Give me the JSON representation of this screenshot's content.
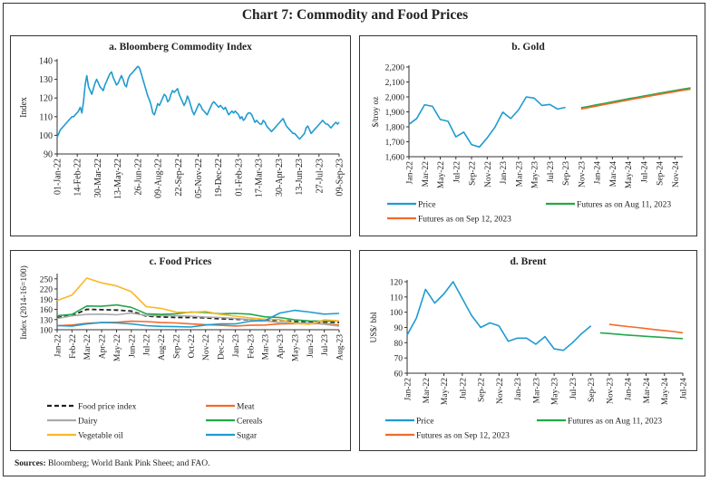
{
  "title": "Chart 7: Commodity and Food Prices",
  "sources_label": "Sources:",
  "sources_text": " Bloomberg; World Bank Pink Sheet; and FAO.",
  "colors": {
    "blue": "#1f9bd1",
    "green": "#23a84a",
    "orange": "#f26a2a",
    "yellow": "#fbb726",
    "grey": "#aaaaaa",
    "black": "#222222"
  },
  "chart_data": [
    {
      "id": "a",
      "type": "line",
      "title": "a. Bloomberg Commodity Index",
      "xlabel": "",
      "ylabel": "Index",
      "ylim": [
        90,
        140
      ],
      "yticks": [
        90,
        100,
        110,
        120,
        130,
        140
      ],
      "xtick_labels": [
        "01-Jan-22",
        "14-Feb-22",
        "30-Mar-22",
        "13-May-22",
        "26-Jun-22",
        "09-Aug-22",
        "22-Sep-22",
        "05-Nov-22",
        "19-Dec-22",
        "01-Feb-23",
        "17-Mar-23",
        "30-Apr-23",
        "13-Jun-23",
        "27-Jul-23",
        "09-Sep-23"
      ],
      "grid": false,
      "series": [
        {
          "name": "Bloomberg Commodity Index",
          "color": "#1f9bd1",
          "values": [
            99,
            101,
            103,
            104,
            105,
            106,
            107,
            108,
            109,
            110,
            110,
            111,
            112,
            113,
            115,
            112,
            118,
            127,
            132,
            126,
            124,
            122,
            125,
            128,
            130,
            128,
            126,
            125,
            124,
            127,
            129,
            131,
            133,
            134,
            131,
            129,
            127,
            128,
            130,
            132,
            130,
            127,
            126,
            130,
            132,
            133,
            134,
            135,
            136,
            137,
            136,
            133,
            130,
            127,
            124,
            121,
            119,
            116,
            112,
            111,
            114,
            117,
            116,
            118,
            120,
            122,
            121,
            118,
            119,
            122,
            124,
            123,
            124,
            125,
            122,
            120,
            118,
            116,
            118,
            121,
            119,
            116,
            113,
            111,
            113,
            115,
            117,
            116,
            114,
            113,
            112,
            111,
            113,
            115,
            117,
            118,
            117,
            116,
            115,
            116,
            115,
            114,
            115,
            113,
            111,
            112,
            113,
            112,
            113,
            112,
            111,
            109,
            110,
            108,
            109,
            111,
            112,
            112,
            111,
            109,
            107,
            108,
            107,
            106,
            106,
            108,
            107,
            105,
            104,
            103,
            102,
            103,
            104,
            105,
            106,
            107,
            108,
            109,
            107,
            105,
            104,
            103,
            102,
            101,
            101,
            100,
            99,
            98,
            99,
            100,
            101,
            104,
            105,
            103,
            101,
            102,
            103,
            104,
            105,
            106,
            107,
            108,
            107,
            106,
            106,
            105,
            104,
            105,
            106,
            107,
            106,
            107
          ]
        }
      ]
    },
    {
      "id": "b",
      "type": "line",
      "title": "b. Gold",
      "xlabel": "",
      "ylabel": "$/troy oz",
      "ylim": [
        1600,
        2200
      ],
      "yticks": [
        1600,
        1700,
        1800,
        1900,
        2000,
        2100,
        2200
      ],
      "ytick_labels": [
        "1,600",
        "1,700",
        "1,800",
        "1,900",
        "2,000",
        "2,100",
        "2,200"
      ],
      "x": [
        "Jan-22",
        "Feb-22",
        "Mar-22",
        "Apr-22",
        "May-22",
        "Jun-22",
        "Jul-22",
        "Aug-22",
        "Sep-22",
        "Oct-22",
        "Nov-22",
        "Dec-22",
        "Jan-23",
        "Feb-23",
        "Mar-23",
        "Apr-23",
        "May-23",
        "Jun-23",
        "Jul-23",
        "Aug-23",
        "Sep-23",
        "Oct-23",
        "Nov-23",
        "Dec-23",
        "Jan-24",
        "Feb-24",
        "Mar-24",
        "Apr-24",
        "May-24",
        "Jun-24",
        "Jul-24",
        "Aug-24",
        "Sep-24",
        "Oct-24",
        "Nov-24",
        "Dec-24"
      ],
      "xtick_labels": [
        "Jan-22",
        "Mar-22",
        "May-22",
        "Jul-22",
        "Sep-22",
        "Nov-22",
        "Jan-23",
        "Mar-23",
        "May-23",
        "Jul-23",
        "Sep-23",
        "Nov-23",
        "Jan-24",
        "Mar-24",
        "May-24",
        "Jul-24",
        "Sep-24",
        "Nov-24"
      ],
      "legend_position": "bottom",
      "series": [
        {
          "name": "Price",
          "color": "#1f9bd1",
          "start": 0,
          "values": [
            1817,
            1856,
            1948,
            1937,
            1849,
            1837,
            1733,
            1765,
            1681,
            1665,
            1726,
            1798,
            1898,
            1855,
            1913,
            2000,
            1992,
            1943,
            1950,
            1919,
            1930
          ]
        },
        {
          "name": "Futures as on Aug 11, 2023",
          "color": "#23a84a",
          "start": 22,
          "values": [
            1927,
            1937,
            1947,
            1957,
            1967,
            1977,
            1987,
            1996,
            2006,
            2015,
            2025,
            2034,
            2043,
            2052,
            2060
          ]
        },
        {
          "name": "Futures as on Sep 12, 2023",
          "color": "#f26a2a",
          "start": 22,
          "values": [
            1919,
            1929,
            1939,
            1949,
            1959,
            1969,
            1979,
            1989,
            1998,
            2008,
            2017,
            2026,
            2035,
            2044,
            2052
          ]
        }
      ]
    },
    {
      "id": "c",
      "type": "line",
      "title": "c. Food Prices",
      "xlabel": "",
      "ylabel": "Index (2014-16=100)",
      "ylim": [
        100,
        260
      ],
      "yticks": [
        100,
        130,
        160,
        190,
        220,
        250
      ],
      "x": [
        "Jan-22",
        "Feb-22",
        "Mar-22",
        "Apr-22",
        "May-22",
        "Jun-22",
        "Jul-22",
        "Aug-22",
        "Sep-22",
        "Oct-22",
        "Nov-22",
        "Dec-22",
        "Jan-23",
        "Feb-23",
        "Mar-23",
        "Apr-23",
        "May-23",
        "Jun-23",
        "Jul-23",
        "Aug-23"
      ],
      "legend_position": "bottom",
      "series": [
        {
          "name": "Food price index",
          "color": "#222222",
          "dash": true,
          "values": [
            136,
            141,
            160,
            159,
            158,
            155,
            140,
            138,
            136,
            136,
            135,
            132,
            131,
            129,
            127,
            128,
            124,
            122,
            123,
            121
          ]
        },
        {
          "name": "Meat",
          "color": "#f26a2a",
          "values": [
            112,
            114,
            119,
            121,
            122,
            125,
            124,
            121,
            120,
            117,
            115,
            113,
            111,
            113,
            114,
            117,
            118,
            118,
            118,
            114
          ]
        },
        {
          "name": "Dairy",
          "color": "#aaaaaa",
          "values": [
            133,
            141,
            145,
            146,
            144,
            149,
            142,
            142,
            141,
            140,
            137,
            136,
            133,
            130,
            126,
            121,
            120,
            120,
            116,
            111
          ]
        },
        {
          "name": "Cereals",
          "color": "#23a84a",
          "values": [
            141,
            145,
            170,
            169,
            173,
            166,
            147,
            145,
            147,
            152,
            151,
            147,
            148,
            146,
            138,
            136,
            129,
            126,
            125,
            126
          ]
        },
        {
          "name": "Vegetable oil",
          "color": "#fbb726",
          "values": [
            186,
            202,
            252,
            238,
            229,
            212,
            168,
            163,
            152,
            151,
            154,
            145,
            140,
            135,
            131,
            130,
            119,
            116,
            129,
            126
          ]
        },
        {
          "name": "Sugar",
          "color": "#1f9bd1",
          "values": [
            112,
            111,
            117,
            121,
            120,
            117,
            112,
            110,
            109,
            108,
            114,
            117,
            117,
            125,
            127,
            149,
            157,
            152,
            146,
            148
          ]
        }
      ]
    },
    {
      "id": "d",
      "type": "line",
      "title": "d. Brent",
      "xlabel": "",
      "ylabel": "US$/ bbl",
      "ylim": [
        60,
        120
      ],
      "yticks": [
        60,
        70,
        80,
        90,
        100,
        110,
        120
      ],
      "x": [
        "Jan-22",
        "Feb-22",
        "Mar-22",
        "Apr-22",
        "May-22",
        "Jun-22",
        "Jul-22",
        "Aug-22",
        "Sep-22",
        "Oct-22",
        "Nov-22",
        "Dec-22",
        "Jan-23",
        "Feb-23",
        "Mar-23",
        "Apr-23",
        "May-23",
        "Jun-23",
        "Jul-23",
        "Aug-23",
        "Sep-23",
        "Oct-23",
        "Nov-23",
        "Dec-23",
        "Jan-24",
        "Feb-24",
        "Mar-24",
        "Apr-24",
        "May-24",
        "Jun-24",
        "Jul-24"
      ],
      "xtick_labels": [
        "Jan-22",
        "Mar-22",
        "May-22",
        "Jul-22",
        "Sep-22",
        "Nov-22",
        "Jan-23",
        "Mar-23",
        "May-23",
        "Jul-23",
        "Sep-23",
        "Nov-23",
        "Jan-24",
        "Mar-24",
        "May-24",
        "Jul-24"
      ],
      "legend_position": "bottom",
      "series": [
        {
          "name": "Price",
          "color": "#1f9bd1",
          "start": 0,
          "values": [
            85,
            96,
            115,
            106,
            112,
            120,
            109,
            98,
            90,
            93,
            91,
            81,
            83,
            83,
            79,
            84,
            76,
            75,
            80,
            86,
            91
          ]
        },
        {
          "name": "Futures as on Aug 11, 2023",
          "color": "#23a84a",
          "start": 21,
          "values": [
            86.5,
            86,
            85.5,
            85,
            84.6,
            84.2,
            83.8,
            83.4,
            83,
            82.7
          ]
        },
        {
          "name": "Futures as on Sep 12, 2023",
          "color": "#f26a2a",
          "start": 22,
          "values": [
            92,
            91.3,
            90.6,
            90,
            89.3,
            88.6,
            88,
            87.3,
            86.5
          ]
        }
      ]
    }
  ]
}
